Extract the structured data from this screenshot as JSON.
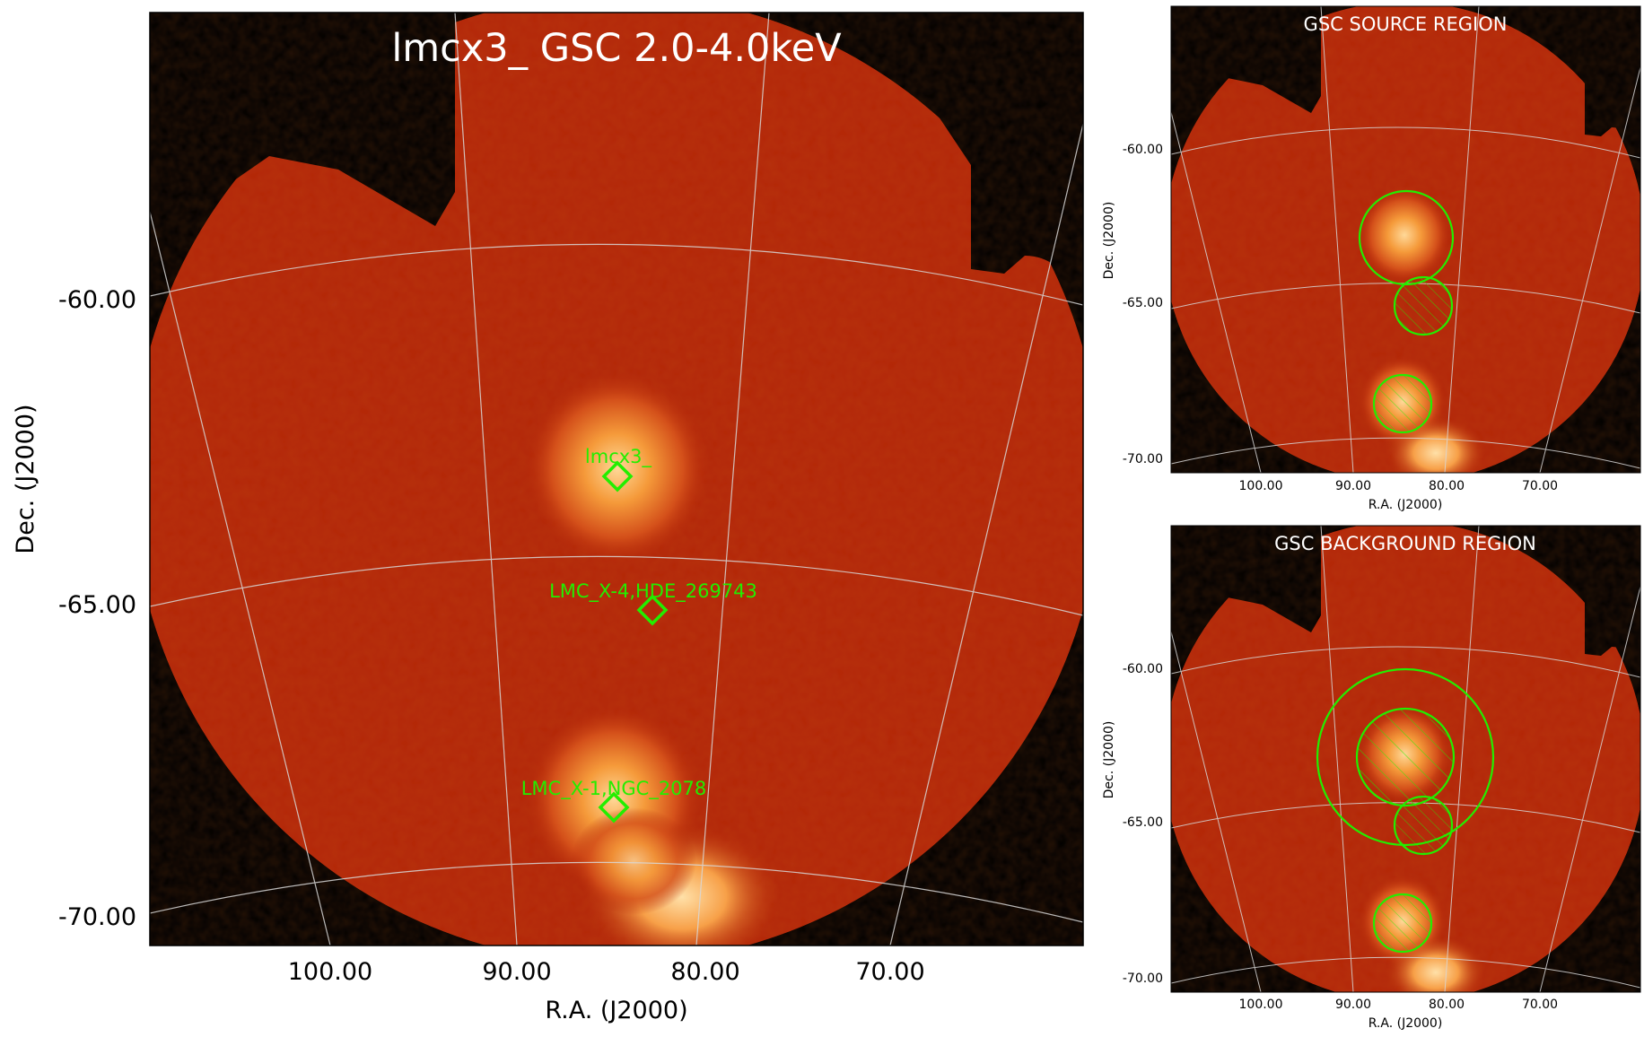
{
  "main_panel": {
    "title": "lmcx3_ GSC 2.0-4.0keV",
    "ylabel": "Dec. (J2000)",
    "xlabel": "R.A. (J2000)",
    "dec_ticks": [
      "-60.00",
      "-65.00",
      "-70.00"
    ],
    "ra_ticks": [
      "100.00",
      "90.00",
      "80.00",
      "70.00"
    ],
    "sources": [
      {
        "label": "lmcx3_"
      },
      {
        "label": "LMC_X-4,HDE_269743"
      },
      {
        "label": "LMC_X-1,NGC_2078"
      }
    ]
  },
  "source_panel": {
    "title": "GSC SOURCE REGION",
    "ylabel": "Dec. (J2000)",
    "xlabel": "R.A. (J2000)",
    "dec_ticks": [
      "-60.00",
      "-65.00",
      "-70.00"
    ],
    "ra_ticks": [
      "100.00",
      "90.00",
      "80.00",
      "70.00"
    ]
  },
  "background_panel": {
    "title": "GSC BACKGROUND REGION",
    "ylabel": "Dec. (J2000)",
    "xlabel": "R.A. (J2000)",
    "dec_ticks": [
      "-60.00",
      "-65.00",
      "-70.00"
    ],
    "ra_ticks": [
      "100.00",
      "90.00",
      "80.00",
      "70.00"
    ]
  },
  "colors": {
    "image_bg": "#000000",
    "field": "#b32608",
    "source_glow": "#ffc67a",
    "region": "#22ee00",
    "grid": "#d8d8d8"
  }
}
